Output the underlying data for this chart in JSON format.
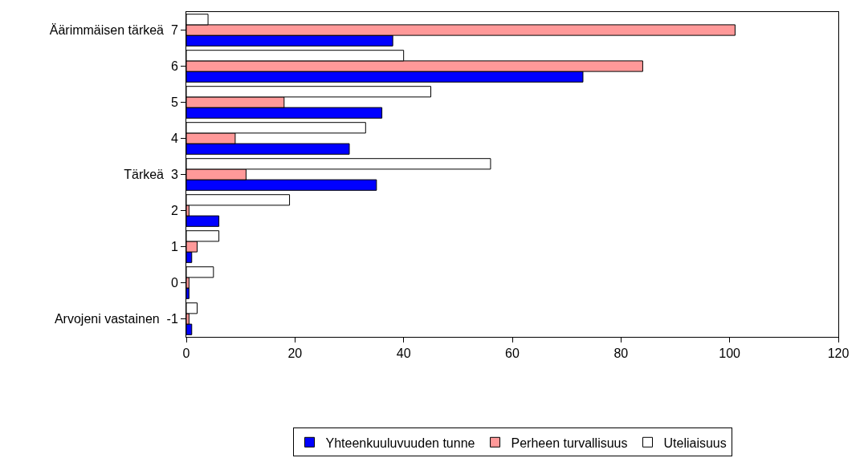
{
  "chart_data": {
    "type": "bar",
    "orientation": "horizontal",
    "categories": [
      "Äärimmäisen tärkeä  7",
      "6",
      "5",
      "4",
      "Tärkeä  3",
      "2",
      "1",
      "0",
      "Arvojeni vastainen  -1"
    ],
    "series": [
      {
        "name": "Yhteenkuuluvuuden tunne",
        "color": "#0000ff",
        "values": [
          38,
          73,
          36,
          30,
          35,
          6,
          1,
          0.5,
          1
        ]
      },
      {
        "name": "Perheen turvallisuus",
        "color": "#ff9999",
        "values": [
          101,
          84,
          18,
          9,
          11,
          0.5,
          2,
          0.5,
          0.5
        ]
      },
      {
        "name": "Uteliaisuus",
        "color": "#ffffff",
        "values": [
          4,
          40,
          45,
          33,
          56,
          19,
          6,
          5,
          2
        ]
      }
    ],
    "xlim": [
      0,
      120
    ],
    "xticks": [
      0,
      20,
      40,
      60,
      80,
      100,
      120
    ],
    "grid": false,
    "legend": "bottom"
  }
}
